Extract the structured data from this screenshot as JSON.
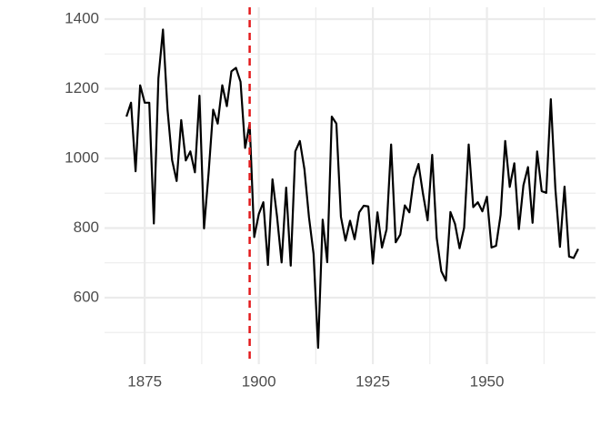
{
  "chart_data": {
    "type": "line",
    "x": [
      1871,
      1872,
      1873,
      1874,
      1875,
      1876,
      1877,
      1878,
      1879,
      1880,
      1881,
      1882,
      1883,
      1884,
      1885,
      1886,
      1887,
      1888,
      1889,
      1890,
      1891,
      1892,
      1893,
      1894,
      1895,
      1896,
      1897,
      1898,
      1899,
      1900,
      1901,
      1902,
      1903,
      1904,
      1905,
      1906,
      1907,
      1908,
      1909,
      1910,
      1911,
      1912,
      1913,
      1914,
      1915,
      1916,
      1917,
      1918,
      1919,
      1920,
      1921,
      1922,
      1923,
      1924,
      1925,
      1926,
      1927,
      1928,
      1929,
      1930,
      1931,
      1932,
      1933,
      1934,
      1935,
      1936,
      1937,
      1938,
      1939,
      1940,
      1941,
      1942,
      1943,
      1944,
      1945,
      1946,
      1947,
      1948,
      1949,
      1950,
      1951,
      1952,
      1953,
      1954,
      1955,
      1956,
      1957,
      1958,
      1959,
      1960,
      1961,
      1962,
      1963,
      1964,
      1965,
      1966,
      1967,
      1968,
      1969,
      1970
    ],
    "series": [
      {
        "color": "#000000",
        "values": [
          1120,
          1160,
          963,
          1210,
          1160,
          1160,
          813,
          1230,
          1370,
          1140,
          995,
          935,
          1110,
          994,
          1020,
          960,
          1180,
          799,
          958,
          1140,
          1100,
          1210,
          1150,
          1250,
          1260,
          1220,
          1030,
          1100,
          774,
          840,
          874,
          694,
          940,
          833,
          701,
          916,
          692,
          1020,
          1050,
          969,
          831,
          726,
          456,
          824,
          702,
          1120,
          1100,
          832,
          764,
          821,
          768,
          845,
          864,
          862,
          698,
          845,
          744,
          796,
          1040,
          759,
          781,
          865,
          845,
          944,
          984,
          897,
          822,
          1010,
          771,
          676,
          649,
          846,
          812,
          742,
          801,
          1040,
          860,
          874,
          848,
          890,
          744,
          749,
          838,
          1050,
          918,
          986,
          797,
          923,
          975,
          815,
          1020,
          906,
          901,
          1170,
          912,
          746,
          919,
          718,
          714,
          740
        ]
      }
    ],
    "xlim": [
      1866.2,
      1973.8
    ],
    "xticks": [
      1875,
      1900,
      1925,
      1950
    ],
    "xminor": [
      1887.5,
      1912.5,
      1937.5,
      1962.5
    ],
    "ylim": [
      409,
      1434
    ],
    "yticks": [
      600,
      800,
      1000,
      1200,
      1400
    ],
    "yminor": [
      500,
      700,
      900,
      1100,
      1300
    ],
    "grid": true,
    "vline": {
      "x": 1898,
      "color": "#e31a1c"
    }
  }
}
